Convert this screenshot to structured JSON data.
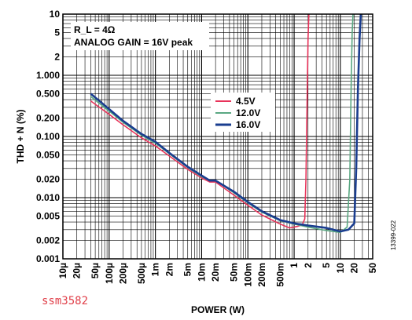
{
  "chart_data": {
    "type": "line",
    "xlabel": "POWER (W)",
    "ylabel": "THD + N (%)",
    "x_scale": "log",
    "y_scale": "log",
    "xlim": [
      1e-05,
      50
    ],
    "ylim": [
      0.001,
      10
    ],
    "x_tick_labels": [
      "10µ",
      "20µ",
      "50µ",
      "100µ",
      "200µ",
      "500µ",
      "1m",
      "2m",
      "5m",
      "10m",
      "20m",
      "50m",
      "100m",
      "200m",
      "500m",
      "1",
      "2",
      "5",
      "10",
      "20",
      "50"
    ],
    "x_tick_values": [
      1e-05,
      2e-05,
      5e-05,
      0.0001,
      0.0002,
      0.0005,
      0.001,
      0.002,
      0.005,
      0.01,
      0.02,
      0.05,
      0.1,
      0.2,
      0.5,
      1,
      2,
      5,
      10,
      20,
      50
    ],
    "y_tick_labels": [
      "0.001",
      "0.002",
      "0.005",
      "0.010",
      "0.020",
      "0.050",
      "0.100",
      "0.200",
      "0.500",
      "1.000",
      "2",
      "5",
      "10"
    ],
    "y_tick_values": [
      0.001,
      0.002,
      0.005,
      0.01,
      0.02,
      0.05,
      0.1,
      0.2,
      0.5,
      1,
      2,
      5,
      10
    ],
    "grid": true,
    "legend_position": "center-right",
    "annotation_lines": [
      "R_L = 4Ω",
      "ANALOG GAIN = 16V peak"
    ],
    "figure_id": "13399-022",
    "watermark": "ssm3582",
    "series": [
      {
        "name": "4.5V",
        "color": "#e8335a",
        "x": [
          4e-05,
          0.0001,
          0.0002,
          0.0005,
          0.001,
          0.002,
          0.005,
          0.01,
          0.015,
          0.02,
          0.05,
          0.1,
          0.2,
          0.5,
          0.8,
          1.2,
          1.5,
          1.7,
          1.8,
          1.9,
          2.0,
          2.1
        ],
        "y": [
          0.38,
          0.23,
          0.155,
          0.095,
          0.07,
          0.048,
          0.029,
          0.021,
          0.018,
          0.018,
          0.011,
          0.0075,
          0.0052,
          0.0037,
          0.0032,
          0.0034,
          0.0036,
          0.0045,
          0.02,
          0.3,
          4,
          12
        ]
      },
      {
        "name": "12.0V",
        "color": "#5aa882",
        "x": [
          4e-05,
          0.0001,
          0.0002,
          0.0005,
          0.001,
          0.002,
          0.005,
          0.01,
          0.015,
          0.02,
          0.05,
          0.1,
          0.2,
          0.5,
          1,
          2,
          5,
          10,
          14,
          16,
          17,
          18,
          19
        ],
        "y": [
          0.45,
          0.26,
          0.17,
          0.105,
          0.078,
          0.052,
          0.031,
          0.022,
          0.019,
          0.019,
          0.012,
          0.0082,
          0.0058,
          0.0042,
          0.0037,
          0.0033,
          0.0029,
          0.0027,
          0.0033,
          0.02,
          0.5,
          5,
          12
        ]
      },
      {
        "name": "16.0V",
        "color": "#1a3d8f",
        "x": [
          4e-05,
          0.0001,
          0.0002,
          0.0005,
          0.001,
          0.002,
          0.005,
          0.01,
          0.015,
          0.02,
          0.05,
          0.1,
          0.2,
          0.5,
          1,
          2,
          5,
          10,
          15,
          20,
          22,
          24,
          26,
          28
        ],
        "y": [
          0.5,
          0.28,
          0.18,
          0.11,
          0.082,
          0.054,
          0.032,
          0.023,
          0.019,
          0.019,
          0.0125,
          0.0085,
          0.006,
          0.0043,
          0.0038,
          0.0035,
          0.0032,
          0.0028,
          0.003,
          0.0038,
          0.03,
          0.6,
          4,
          12
        ]
      }
    ]
  }
}
